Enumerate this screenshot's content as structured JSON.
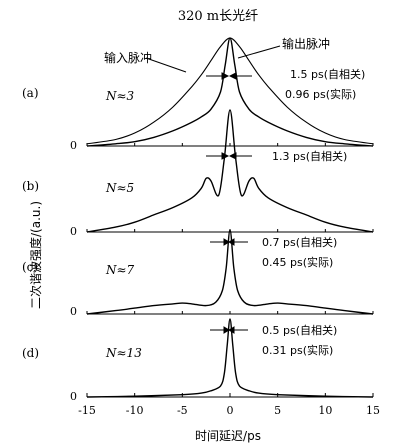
{
  "chart_data": {
    "type": "line",
    "title": "320 m长光纤",
    "xlabel": "时间延迟/ps",
    "ylabel": "二次谐波强度/(a.u.)",
    "xlim": [
      -15,
      15
    ],
    "x_ticks": [
      "-15",
      "-10",
      "-5",
      "0",
      "5",
      "10",
      "15"
    ],
    "zero_label": "0",
    "grid": false,
    "panels": [
      {
        "label": "(a)",
        "N": "N≈3",
        "series": [
          {
            "name": "输入脉冲",
            "x": [
              -15,
              -12,
              -10,
              -8,
              -6,
              -4,
              -3,
              -2,
              -1,
              0,
              1,
              2,
              3,
              4,
              6,
              8,
              10,
              12,
              15
            ],
            "y": [
              0.02,
              0.06,
              0.12,
              0.22,
              0.36,
              0.55,
              0.66,
              0.79,
              0.92,
              1.0,
              0.92,
              0.79,
              0.66,
              0.55,
              0.36,
              0.22,
              0.12,
              0.06,
              0.02
            ]
          },
          {
            "name": "输出脉冲",
            "x": [
              -15,
              -12,
              -10,
              -8,
              -6,
              -4,
              -3,
              -2,
              -1,
              -0.5,
              0,
              0.5,
              1,
              2,
              3,
              4,
              6,
              8,
              10,
              12,
              15
            ],
            "y": [
              0.0,
              0.02,
              0.04,
              0.08,
              0.14,
              0.22,
              0.27,
              0.34,
              0.5,
              0.75,
              1.0,
              0.75,
              0.5,
              0.34,
              0.27,
              0.22,
              0.14,
              0.08,
              0.04,
              0.02,
              0.0
            ]
          }
        ],
        "annotations": [
          "1.5 ps(自相关)",
          "0.96 ps(实际)"
        ]
      },
      {
        "label": "(b)",
        "N": "N≈5",
        "series": [
          {
            "name": "",
            "x": [
              -15,
              -12,
              -10,
              -8,
              -6,
              -4,
              -3,
              -2.5,
              -2,
              -1.2,
              -0.6,
              0,
              0.6,
              1.2,
              2,
              2.5,
              3,
              4,
              6,
              8,
              10,
              12,
              15
            ],
            "y": [
              0.0,
              0.04,
              0.08,
              0.14,
              0.2,
              0.28,
              0.36,
              0.44,
              0.42,
              0.3,
              0.6,
              1.0,
              0.6,
              0.3,
              0.42,
              0.44,
              0.36,
              0.28,
              0.2,
              0.14,
              0.08,
              0.04,
              0.0
            ]
          }
        ],
        "annotations": [
          "1.3 ps(自相关)"
        ]
      },
      {
        "label": "(c)",
        "N": "N≈7",
        "series": [
          {
            "name": "",
            "x": [
              -15,
              -12,
              -10,
              -8,
              -6,
              -5,
              -4,
              -2.5,
              -1.5,
              -0.8,
              -0.4,
              0,
              0.4,
              0.8,
              1.5,
              2.5,
              4,
              5,
              6,
              8,
              10,
              12,
              15
            ],
            "y": [
              0.0,
              0.04,
              0.07,
              0.1,
              0.12,
              0.13,
              0.12,
              0.1,
              0.14,
              0.28,
              0.55,
              1.0,
              0.55,
              0.28,
              0.14,
              0.1,
              0.12,
              0.13,
              0.12,
              0.1,
              0.07,
              0.04,
              0.0
            ]
          }
        ],
        "annotations": [
          "0.7 ps(自相关)",
          "0.45 ps(实际)"
        ]
      },
      {
        "label": "(d)",
        "N": "N≈13",
        "series": [
          {
            "name": "",
            "x": [
              -15,
              -10,
              -5,
              -3,
              -2,
              -1,
              -0.6,
              -0.3,
              0,
              0.3,
              0.6,
              1,
              2,
              3,
              5,
              10,
              15
            ],
            "y": [
              0.0,
              0.01,
              0.03,
              0.05,
              0.08,
              0.14,
              0.3,
              0.65,
              1.0,
              0.65,
              0.3,
              0.14,
              0.08,
              0.05,
              0.03,
              0.01,
              0.0
            ]
          }
        ],
        "annotations": [
          "0.5 ps(自相关)",
          "0.31 ps(实际)"
        ]
      }
    ]
  }
}
